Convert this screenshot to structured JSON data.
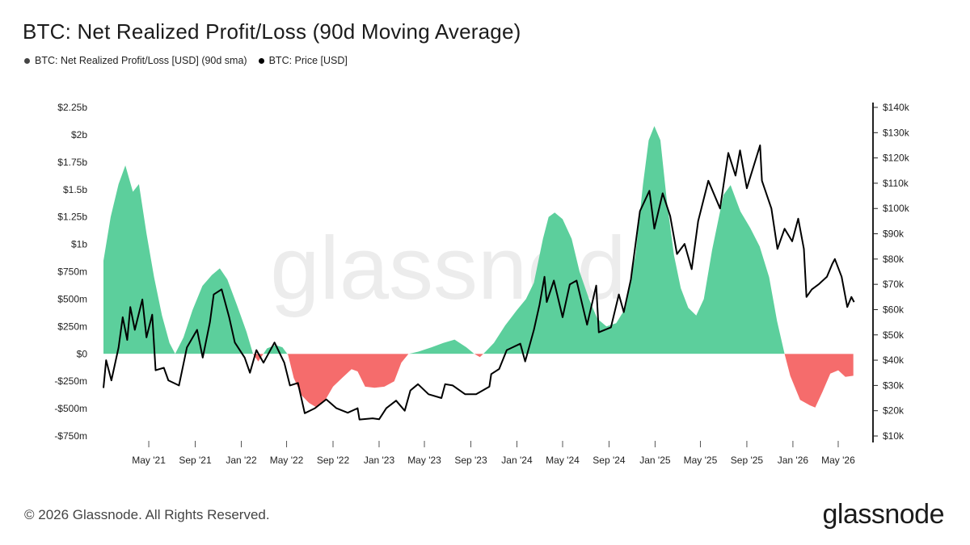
{
  "title": "BTC: Net Realized Profit/Loss (90d Moving Average)",
  "legend": [
    {
      "label": "BTC: Net Realized Profit/Loss [USD] (90d sma)",
      "color": "#444444"
    },
    {
      "label": "BTC: Price [USD]",
      "color": "#000000"
    }
  ],
  "footer": "© 2026 Glassnode. All Rights Reserved.",
  "brand": "glassnode",
  "watermark": "glassnode",
  "colors": {
    "profit": "#5ccf9c",
    "loss": "#f56c6c",
    "price": "#000000",
    "axis": "#222222"
  },
  "chart_data": {
    "type": "area",
    "title": "BTC: Net Realized Profit/Loss (90d Moving Average)",
    "x_range": [
      "2021-01-01",
      "2026-07-15"
    ],
    "x_ticks": [
      "May '21",
      "Sep '21",
      "Jan '22",
      "May '22",
      "Sep '22",
      "Jan '23",
      "May '23",
      "Sep '23",
      "Jan '24",
      "May '24",
      "Sep '24",
      "Jan '25",
      "May '25",
      "Sep '25",
      "Jan '26",
      "May '26"
    ],
    "y_left": {
      "range": [
        -750000000,
        2250000000
      ],
      "tick_values": [
        -750000000,
        -500000000,
        -250000000,
        0,
        250000000,
        500000000,
        750000000,
        1000000000,
        1250000000,
        1500000000,
        1750000000,
        2000000000,
        2250000000
      ],
      "tick_labels": [
        "-$750m",
        "-$500m",
        "-$250m",
        "$0",
        "$250m",
        "$500m",
        "$750m",
        "$1b",
        "$1.25b",
        "$1.5b",
        "$1.75b",
        "$2b",
        "$2.25b"
      ]
    },
    "y_right": {
      "range": [
        10000,
        140000
      ],
      "tick_values": [
        10000,
        20000,
        30000,
        40000,
        50000,
        60000,
        70000,
        80000,
        90000,
        100000,
        110000,
        120000,
        130000,
        140000
      ],
      "tick_labels": [
        "$10k",
        "$20k",
        "$30k",
        "$40k",
        "$50k",
        "$60k",
        "$70k",
        "$80k",
        "$90k",
        "$100k",
        "$110k",
        "$120k",
        "$130k",
        "$140k"
      ]
    },
    "series": [
      {
        "name": "BTC: Net Realized Profit/Loss [USD] (90d sma)",
        "axis": "left",
        "points": [
          [
            "2021-01-01",
            850000000
          ],
          [
            "2021-01-20",
            1250000000
          ],
          [
            "2021-02-10",
            1550000000
          ],
          [
            "2021-02-28",
            1720000000
          ],
          [
            "2021-03-20",
            1480000000
          ],
          [
            "2021-04-05",
            1550000000
          ],
          [
            "2021-04-25",
            1100000000
          ],
          [
            "2021-05-15",
            700000000
          ],
          [
            "2021-06-05",
            350000000
          ],
          [
            "2021-06-25",
            100000000
          ],
          [
            "2021-07-10",
            0
          ],
          [
            "2021-08-01",
            150000000
          ],
          [
            "2021-08-25",
            400000000
          ],
          [
            "2021-09-20",
            620000000
          ],
          [
            "2021-10-15",
            720000000
          ],
          [
            "2021-11-05",
            780000000
          ],
          [
            "2021-11-25",
            680000000
          ],
          [
            "2021-12-20",
            450000000
          ],
          [
            "2022-01-15",
            200000000
          ],
          [
            "2022-02-01",
            0
          ],
          [
            "2022-02-15",
            -70000000
          ],
          [
            "2022-03-10",
            50000000
          ],
          [
            "2022-04-01",
            80000000
          ],
          [
            "2022-04-20",
            60000000
          ],
          [
            "2022-05-05",
            -10000000
          ],
          [
            "2022-05-20",
            -220000000
          ],
          [
            "2022-06-10",
            -380000000
          ],
          [
            "2022-06-30",
            -450000000
          ],
          [
            "2022-07-20",
            -490000000
          ],
          [
            "2022-08-10",
            -430000000
          ],
          [
            "2022-09-01",
            -300000000
          ],
          [
            "2022-09-25",
            -220000000
          ],
          [
            "2022-10-20",
            -140000000
          ],
          [
            "2022-11-05",
            -160000000
          ],
          [
            "2022-11-25",
            -300000000
          ],
          [
            "2022-12-20",
            -310000000
          ],
          [
            "2023-01-15",
            -300000000
          ],
          [
            "2023-02-10",
            -250000000
          ],
          [
            "2023-03-01",
            -80000000
          ],
          [
            "2023-03-20",
            0
          ],
          [
            "2023-04-15",
            20000000
          ],
          [
            "2023-05-20",
            60000000
          ],
          [
            "2023-06-20",
            100000000
          ],
          [
            "2023-07-20",
            130000000
          ],
          [
            "2023-08-20",
            60000000
          ],
          [
            "2023-09-10",
            0
          ],
          [
            "2023-09-25",
            -30000000
          ],
          [
            "2023-10-10",
            20000000
          ],
          [
            "2023-11-01",
            100000000
          ],
          [
            "2023-12-01",
            260000000
          ],
          [
            "2024-01-01",
            400000000
          ],
          [
            "2024-01-25",
            500000000
          ],
          [
            "2024-02-15",
            650000000
          ],
          [
            "2024-03-10",
            1050000000
          ],
          [
            "2024-03-25",
            1250000000
          ],
          [
            "2024-04-10",
            1290000000
          ],
          [
            "2024-05-01",
            1230000000
          ],
          [
            "2024-05-25",
            1050000000
          ],
          [
            "2024-06-15",
            750000000
          ],
          [
            "2024-07-10",
            500000000
          ],
          [
            "2024-08-01",
            320000000
          ],
          [
            "2024-08-25",
            250000000
          ],
          [
            "2024-09-20",
            280000000
          ],
          [
            "2024-10-15",
            420000000
          ],
          [
            "2024-11-10",
            900000000
          ],
          [
            "2024-11-30",
            1550000000
          ],
          [
            "2024-12-15",
            1950000000
          ],
          [
            "2024-12-30",
            2080000000
          ],
          [
            "2025-01-15",
            1950000000
          ],
          [
            "2025-02-01",
            1400000000
          ],
          [
            "2025-02-20",
            900000000
          ],
          [
            "2025-03-10",
            600000000
          ],
          [
            "2025-03-30",
            420000000
          ],
          [
            "2025-04-20",
            350000000
          ],
          [
            "2025-05-10",
            500000000
          ],
          [
            "2025-06-01",
            950000000
          ],
          [
            "2025-07-01",
            1450000000
          ],
          [
            "2025-07-20",
            1540000000
          ],
          [
            "2025-08-15",
            1300000000
          ],
          [
            "2025-09-10",
            1150000000
          ],
          [
            "2025-10-05",
            980000000
          ],
          [
            "2025-10-30",
            700000000
          ],
          [
            "2025-11-20",
            300000000
          ],
          [
            "2025-12-10",
            0
          ],
          [
            "2025-12-25",
            -200000000
          ],
          [
            "2026-01-20",
            -420000000
          ],
          [
            "2026-02-15",
            -470000000
          ],
          [
            "2026-03-01",
            -490000000
          ],
          [
            "2026-03-20",
            -350000000
          ],
          [
            "2026-04-10",
            -180000000
          ],
          [
            "2026-05-01",
            -150000000
          ],
          [
            "2026-05-20",
            -210000000
          ],
          [
            "2026-06-10",
            -200000000
          ]
        ]
      },
      {
        "name": "BTC: Price [USD]",
        "axis": "right",
        "points": [
          [
            "2021-01-01",
            29000
          ],
          [
            "2021-01-08",
            40000
          ],
          [
            "2021-01-22",
            32000
          ],
          [
            "2021-02-10",
            45000
          ],
          [
            "2021-02-21",
            57000
          ],
          [
            "2021-03-05",
            48000
          ],
          [
            "2021-03-13",
            61000
          ],
          [
            "2021-03-25",
            52000
          ],
          [
            "2021-04-14",
            64000
          ],
          [
            "2021-04-25",
            49000
          ],
          [
            "2021-05-10",
            58000
          ],
          [
            "2021-05-19",
            36000
          ],
          [
            "2021-06-10",
            37000
          ],
          [
            "2021-06-22",
            32000
          ],
          [
            "2021-07-20",
            30000
          ],
          [
            "2021-08-10",
            45000
          ],
          [
            "2021-09-06",
            52000
          ],
          [
            "2021-09-21",
            41000
          ],
          [
            "2021-10-10",
            55000
          ],
          [
            "2021-10-20",
            66000
          ],
          [
            "2021-11-10",
            68000
          ],
          [
            "2021-11-30",
            57000
          ],
          [
            "2021-12-15",
            47000
          ],
          [
            "2022-01-10",
            41000
          ],
          [
            "2022-01-24",
            35000
          ],
          [
            "2022-02-10",
            44000
          ],
          [
            "2022-03-01",
            39000
          ],
          [
            "2022-03-30",
            47000
          ],
          [
            "2022-04-25",
            39000
          ],
          [
            "2022-05-10",
            30000
          ],
          [
            "2022-05-31",
            31000
          ],
          [
            "2022-06-18",
            19000
          ],
          [
            "2022-07-15",
            21000
          ],
          [
            "2022-08-14",
            24500
          ],
          [
            "2022-09-10",
            21000
          ],
          [
            "2022-10-10",
            19200
          ],
          [
            "2022-11-05",
            21000
          ],
          [
            "2022-11-10",
            16500
          ],
          [
            "2022-12-15",
            17000
          ],
          [
            "2023-01-01",
            16600
          ],
          [
            "2023-01-20",
            21000
          ],
          [
            "2023-02-15",
            24000
          ],
          [
            "2023-03-10",
            20000
          ],
          [
            "2023-03-25",
            28000
          ],
          [
            "2023-04-14",
            30500
          ],
          [
            "2023-05-12",
            26500
          ],
          [
            "2023-06-15",
            25000
          ],
          [
            "2023-06-25",
            30500
          ],
          [
            "2023-07-15",
            30000
          ],
          [
            "2023-08-17",
            26500
          ],
          [
            "2023-09-15",
            26500
          ],
          [
            "2023-10-20",
            29500
          ],
          [
            "2023-10-25",
            34500
          ],
          [
            "2023-11-15",
            36500
          ],
          [
            "2023-12-05",
            44000
          ],
          [
            "2024-01-10",
            46500
          ],
          [
            "2024-01-23",
            39500
          ],
          [
            "2024-02-15",
            52000
          ],
          [
            "2024-03-01",
            62000
          ],
          [
            "2024-03-14",
            73000
          ],
          [
            "2024-03-20",
            63000
          ],
          [
            "2024-04-08",
            71500
          ],
          [
            "2024-05-01",
            57000
          ],
          [
            "2024-05-20",
            70000
          ],
          [
            "2024-06-07",
            71500
          ],
          [
            "2024-07-05",
            54000
          ],
          [
            "2024-07-29",
            69500
          ],
          [
            "2024-08-05",
            51000
          ],
          [
            "2024-09-06",
            53000
          ],
          [
            "2024-09-27",
            66000
          ],
          [
            "2024-10-10",
            59000
          ],
          [
            "2024-10-29",
            72000
          ],
          [
            "2024-11-12",
            88000
          ],
          [
            "2024-11-22",
            99000
          ],
          [
            "2024-12-17",
            107000
          ],
          [
            "2024-12-30",
            92000
          ],
          [
            "2025-01-21",
            106000
          ],
          [
            "2025-02-10",
            97000
          ],
          [
            "2025-02-28",
            82000
          ],
          [
            "2025-03-20",
            86000
          ],
          [
            "2025-04-08",
            76000
          ],
          [
            "2025-04-25",
            95000
          ],
          [
            "2025-05-22",
            111000
          ],
          [
            "2025-06-22",
            100000
          ],
          [
            "2025-07-14",
            122000
          ],
          [
            "2025-08-02",
            113000
          ],
          [
            "2025-08-14",
            123000
          ],
          [
            "2025-09-01",
            108000
          ],
          [
            "2025-10-06",
            125000
          ],
          [
            "2025-10-11",
            111000
          ],
          [
            "2025-11-05",
            100000
          ],
          [
            "2025-11-21",
            84000
          ],
          [
            "2025-12-10",
            92000
          ],
          [
            "2025-12-30",
            87000
          ],
          [
            "2026-01-15",
            96000
          ],
          [
            "2026-01-30",
            84000
          ],
          [
            "2026-02-06",
            65000
          ],
          [
            "2026-02-20",
            68000
          ],
          [
            "2026-03-10",
            70000
          ],
          [
            "2026-04-01",
            73000
          ],
          [
            "2026-04-15",
            78000
          ],
          [
            "2026-04-22",
            80000
          ],
          [
            "2026-05-10",
            73000
          ],
          [
            "2026-05-25",
            61000
          ],
          [
            "2026-06-05",
            65000
          ],
          [
            "2026-06-12",
            63000
          ]
        ]
      }
    ]
  }
}
